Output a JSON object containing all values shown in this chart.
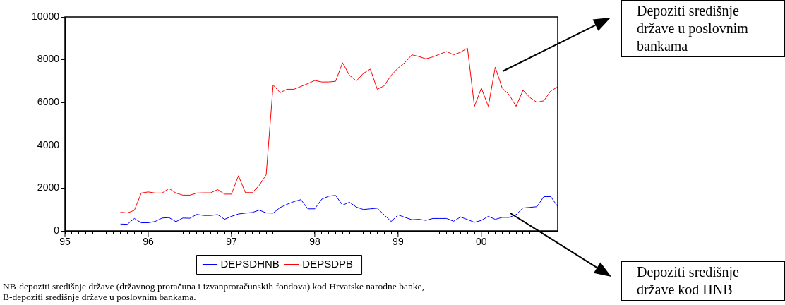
{
  "chart_data": {
    "type": "line",
    "x": [
      "1995-09",
      "1995-10",
      "1995-11",
      "1995-12",
      "1996-01",
      "1996-02",
      "1996-03",
      "1996-04",
      "1996-05",
      "1996-06",
      "1996-07",
      "1996-08",
      "1996-09",
      "1996-10",
      "1996-11",
      "1996-12",
      "1997-01",
      "1997-02",
      "1997-03",
      "1997-04",
      "1997-05",
      "1997-06",
      "1997-07",
      "1997-08",
      "1997-09",
      "1997-10",
      "1997-11",
      "1997-12",
      "1998-01",
      "1998-02",
      "1998-03",
      "1998-04",
      "1998-05",
      "1998-06",
      "1998-07",
      "1998-08",
      "1998-09",
      "1998-10",
      "1998-11",
      "1998-12",
      "1999-01",
      "1999-02",
      "1999-03",
      "1999-04",
      "1999-05",
      "1999-06",
      "1999-07",
      "1999-08",
      "1999-09",
      "1999-10",
      "1999-11",
      "1999-12",
      "2000-01",
      "2000-02",
      "2000-03",
      "2000-04",
      "2000-05",
      "2000-06",
      "2000-07",
      "2000-08",
      "2000-09",
      "2000-10",
      "2000-11",
      "2000-12"
    ],
    "series": [
      {
        "name": "DEPSDHNB",
        "color": "#0000ff",
        "values": [
          320,
          310,
          580,
          380,
          380,
          440,
          600,
          620,
          430,
          600,
          590,
          770,
          720,
          720,
          760,
          540,
          680,
          790,
          830,
          860,
          970,
          840,
          830,
          1090,
          1240,
          1370,
          1460,
          1030,
          1030,
          1480,
          1620,
          1660,
          1200,
          1340,
          1110,
          1000,
          1030,
          1060,
          750,
          440,
          750,
          630,
          520,
          540,
          490,
          580,
          580,
          580,
          450,
          650,
          530,
          400,
          490,
          680,
          540,
          630,
          630,
          760,
          1070,
          1100,
          1130,
          1600,
          1600,
          1140
        ]
      },
      {
        "name": "DEPSDPB",
        "color": "#ff0000",
        "values": [
          870,
          840,
          960,
          1770,
          1820,
          1770,
          1770,
          1980,
          1770,
          1670,
          1670,
          1770,
          1780,
          1780,
          1930,
          1720,
          1720,
          2580,
          1790,
          1790,
          2130,
          2630,
          6820,
          6460,
          6620,
          6620,
          6750,
          6880,
          7030,
          6960,
          6960,
          6990,
          7860,
          7270,
          7010,
          7360,
          7560,
          6620,
          6780,
          7270,
          7610,
          7870,
          8230,
          8150,
          8040,
          8130,
          8260,
          8380,
          8230,
          8350,
          8540,
          5820,
          6670,
          5820,
          7650,
          6670,
          6370,
          5820,
          6570,
          6230,
          6010,
          6080,
          6540,
          6730
        ]
      }
    ],
    "xlim": [
      "1995-01",
      "2000-12"
    ],
    "xticks": [
      {
        "value": "1995-01",
        "label": "95"
      },
      {
        "value": "1995-02",
        "label": null
      },
      {
        "value": "1995-03",
        "label": null
      },
      {
        "value": "1995-04",
        "label": null
      },
      {
        "value": "1995-05",
        "label": null
      },
      {
        "value": "1995-06",
        "label": null
      },
      {
        "value": "1995-07",
        "label": null
      },
      {
        "value": "1995-08",
        "label": null
      },
      {
        "value": "1995-09",
        "label": null
      },
      {
        "value": "1995-10",
        "label": null
      },
      {
        "value": "1995-11",
        "label": null
      },
      {
        "value": "1995-12",
        "label": null
      },
      {
        "value": "1996-01",
        "label": "96"
      },
      {
        "value": "1996-02",
        "label": null
      },
      {
        "value": "1996-03",
        "label": null
      },
      {
        "value": "1996-04",
        "label": null
      },
      {
        "value": "1996-05",
        "label": null
      },
      {
        "value": "1996-06",
        "label": null
      },
      {
        "value": "1996-07",
        "label": null
      },
      {
        "value": "1996-08",
        "label": null
      },
      {
        "value": "1996-09",
        "label": null
      },
      {
        "value": "1996-10",
        "label": null
      },
      {
        "value": "1996-11",
        "label": null
      },
      {
        "value": "1996-12",
        "label": null
      },
      {
        "value": "1997-01",
        "label": "97"
      },
      {
        "value": "1997-02",
        "label": null
      },
      {
        "value": "1997-03",
        "label": null
      },
      {
        "value": "1997-04",
        "label": null
      },
      {
        "value": "1997-05",
        "label": null
      },
      {
        "value": "1997-06",
        "label": null
      },
      {
        "value": "1997-07",
        "label": null
      },
      {
        "value": "1997-08",
        "label": null
      },
      {
        "value": "1997-09",
        "label": null
      },
      {
        "value": "1997-10",
        "label": null
      },
      {
        "value": "1997-11",
        "label": null
      },
      {
        "value": "1997-12",
        "label": null
      },
      {
        "value": "1998-01",
        "label": "98"
      },
      {
        "value": "1998-02",
        "label": null
      },
      {
        "value": "1998-03",
        "label": null
      },
      {
        "value": "1998-04",
        "label": null
      },
      {
        "value": "1998-05",
        "label": null
      },
      {
        "value": "1998-06",
        "label": null
      },
      {
        "value": "1998-07",
        "label": null
      },
      {
        "value": "1998-08",
        "label": null
      },
      {
        "value": "1998-09",
        "label": null
      },
      {
        "value": "1998-10",
        "label": null
      },
      {
        "value": "1998-11",
        "label": null
      },
      {
        "value": "1998-12",
        "label": null
      },
      {
        "value": "1999-01",
        "label": "99"
      },
      {
        "value": "1999-02",
        "label": null
      },
      {
        "value": "1999-03",
        "label": null
      },
      {
        "value": "1999-04",
        "label": null
      },
      {
        "value": "1999-05",
        "label": null
      },
      {
        "value": "1999-06",
        "label": null
      },
      {
        "value": "1999-07",
        "label": null
      },
      {
        "value": "1999-08",
        "label": null
      },
      {
        "value": "1999-09",
        "label": null
      },
      {
        "value": "1999-10",
        "label": null
      },
      {
        "value": "1999-11",
        "label": null
      },
      {
        "value": "1999-12",
        "label": null
      },
      {
        "value": "2000-01",
        "label": "00"
      },
      {
        "value": "2000-02",
        "label": null
      },
      {
        "value": "2000-03",
        "label": null
      },
      {
        "value": "2000-04",
        "label": null
      },
      {
        "value": "2000-05",
        "label": null
      },
      {
        "value": "2000-06",
        "label": null
      },
      {
        "value": "2000-07",
        "label": null
      },
      {
        "value": "2000-08",
        "label": null
      },
      {
        "value": "2000-09",
        "label": null
      },
      {
        "value": "2000-10",
        "label": null
      },
      {
        "value": "2000-11",
        "label": null
      },
      {
        "value": "2000-12",
        "label": null
      }
    ],
    "ylim": [
      0,
      10000
    ],
    "yticks": [
      0,
      2000,
      4000,
      6000,
      8000,
      10000
    ],
    "grid": false,
    "legend": "bottom",
    "marker": "none",
    "line_style": "solid",
    "annotations": [
      "Depoziti središnje države u poslovnim bankama",
      "Depoziti središnje države kod HNB",
      "NB-depoziti središnje države (državnog proračuna i izvanproračunskih fondova) kod Hrvatske narodne banke,",
      "B-depoziti središnje države u poslovnim bankama."
    ]
  }
}
